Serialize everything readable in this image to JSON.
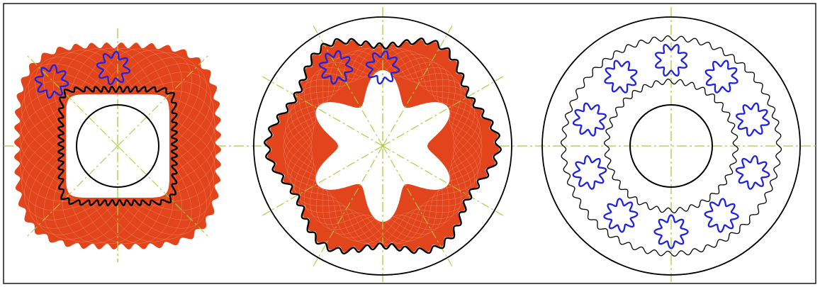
{
  "figure": {
    "panels": [
      {
        "id": "left",
        "gear_form": "square",
        "outer_ring_visible": false,
        "envelope_visible": true,
        "planet_count_visible": 2
      },
      {
        "id": "middle",
        "gear_form": "hexagonal",
        "outer_ring_visible": true,
        "envelope_visible": true,
        "planet_count_visible": 2
      },
      {
        "id": "right",
        "gear_form": "circular",
        "outer_ring_visible": true,
        "envelope_visible": false,
        "planet_count_visible": 10
      }
    ],
    "colors": {
      "border": "#1a1a1a",
      "gear_outline": "#000000",
      "planet": "#1f22e0",
      "envelope": "#e2451b",
      "centerline": "#a8cc3c"
    }
  }
}
